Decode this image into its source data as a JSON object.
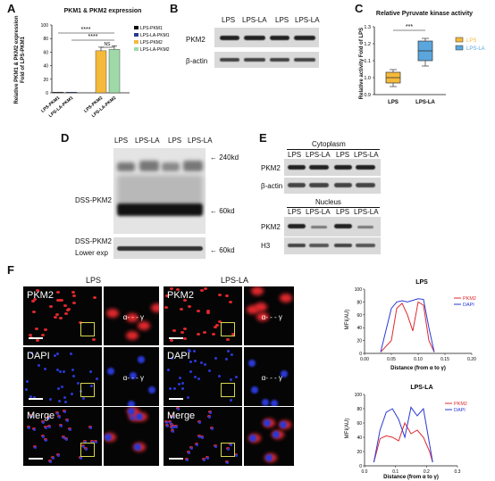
{
  "panels": [
    "A",
    "B",
    "C",
    "D",
    "E",
    "F"
  ],
  "panelA": {
    "title": "PKM1 & PKM2 expression",
    "ylabel": "Relative PKM1 & PKM2 expression\nFold of LPS-PKM1",
    "yticks": [
      "0",
      "20",
      "40",
      "60",
      "80",
      "100"
    ],
    "xcats": [
      "LPS-PKM1",
      "LPS-LA-PKM1",
      "LPS-PKM2",
      "LPS-LA-PKM2"
    ],
    "legend": [
      "LPS-PKM1",
      "LPS-LA-PKM1",
      "LPS-PKM2",
      "LPS-LA-PKM2"
    ],
    "sig1": "****",
    "sig2": "****",
    "sig3": "NS"
  },
  "panelB": {
    "lanes": [
      "LPS",
      "LPS-LA",
      "LPS",
      "LPS-LA"
    ],
    "rows": [
      "PKM2",
      "β-actin"
    ]
  },
  "panelC": {
    "title": "Relative Pyruvate kinase activity",
    "ylabel": "Relative activity Fold of LPS",
    "yticks": [
      "0.9",
      "1.0",
      "1.1",
      "1.2",
      "1.3"
    ],
    "xcats": [
      "LPS",
      "LPS-LA"
    ],
    "legend": [
      "LPS",
      "LPS-LA"
    ],
    "sig": "***"
  },
  "panelD": {
    "lanes": [
      "LPS",
      "LPS-LA",
      "LPS",
      "LPS-LA"
    ],
    "row1": "DSS-PKM2",
    "row2a": "DSS-PKM2",
    "row2b": "Lower exp",
    "mw1": "240kd",
    "mw2": "60kd",
    "mw3": "60kd"
  },
  "panelE": {
    "cyto": "Cytoplasm",
    "nucleus": "Nucleus",
    "lanes": [
      "LPS",
      "LPS-LA",
      "LPS",
      "LPS-LA"
    ],
    "rows_cyto": [
      "PKM2",
      "β-actin"
    ],
    "rows_nuc": [
      "PKM2",
      "H3"
    ]
  },
  "panelF": {
    "col1": "LPS",
    "col2": "LPS-LA",
    "rows": [
      "PKM2",
      "DAPI",
      "Merge"
    ],
    "alpha": "α",
    "gamma": "γ",
    "plot1": {
      "title": "LPS",
      "ylabel": "MFI(AU)",
      "xlabel": "Distance (from α to γ)",
      "yticks": [
        "0",
        "20",
        "40",
        "60",
        "80",
        "100"
      ],
      "xticks": [
        "0.00",
        "0.05",
        "0.10",
        "0.15",
        "0.20"
      ],
      "legend": [
        "PKM2",
        "DAPI"
      ]
    },
    "plot2": {
      "title": "LPS-LA",
      "ylabel": "MFI(AU)",
      "xlabel": "Distance (from α to γ)",
      "yticks": [
        "0",
        "20",
        "40",
        "60",
        "80",
        "100"
      ],
      "xticks": [
        "0.0",
        "0.1",
        "0.2",
        "0.3"
      ],
      "legend": [
        "PKM2",
        "DAPI"
      ]
    }
  },
  "colors": {
    "pkm2": "#e0282d",
    "dapi": "#2a39d6",
    "lps": "#f5b93b",
    "lpsla": "#5aa6dd",
    "green": "#9fd9a8"
  },
  "chart_data": [
    {
      "type": "bar",
      "title": "PKM1 & PKM2 expression",
      "categories": [
        "LPS-PKM1",
        "LPS-LA-PKM1",
        "LPS-PKM2",
        "LPS-LA-PKM2"
      ],
      "values": [
        1,
        1,
        62,
        64
      ],
      "ylim": [
        0,
        100
      ]
    },
    {
      "type": "bar",
      "title": "Relative Pyruvate kinase activity",
      "categories": [
        "LPS",
        "LPS-LA"
      ],
      "values": [
        1.0,
        1.18
      ],
      "ylim": [
        0.9,
        1.3
      ]
    },
    {
      "type": "line",
      "title": "LPS",
      "xlabel": "Distance (from α to γ)",
      "ylabel": "MFI(AU)",
      "xlim": [
        0,
        0.2
      ],
      "ylim": [
        0,
        100
      ],
      "series": [
        {
          "name": "PKM2",
          "x": [
            0.03,
            0.05,
            0.06,
            0.07,
            0.08,
            0.09,
            0.1,
            0.11,
            0.12,
            0.13
          ],
          "y": [
            2,
            20,
            70,
            78,
            60,
            35,
            80,
            75,
            20,
            2
          ]
        },
        {
          "name": "DAPI",
          "x": [
            0.03,
            0.05,
            0.06,
            0.07,
            0.08,
            0.1,
            0.11,
            0.12,
            0.13
          ],
          "y": [
            2,
            70,
            80,
            82,
            80,
            85,
            84,
            40,
            2
          ]
        }
      ]
    },
    {
      "type": "line",
      "title": "LPS-LA",
      "xlabel": "Distance (from α to γ)",
      "ylabel": "MFI(AU)",
      "xlim": [
        0,
        0.3
      ],
      "ylim": [
        0,
        100
      ],
      "series": [
        {
          "name": "PKM2",
          "x": [
            0.03,
            0.05,
            0.07,
            0.09,
            0.11,
            0.13,
            0.15,
            0.17,
            0.19,
            0.21,
            0.22
          ],
          "y": [
            5,
            38,
            42,
            40,
            35,
            60,
            45,
            50,
            40,
            20,
            5
          ]
        },
        {
          "name": "DAPI",
          "x": [
            0.03,
            0.05,
            0.07,
            0.09,
            0.11,
            0.13,
            0.15,
            0.17,
            0.19,
            0.21,
            0.22
          ],
          "y": [
            5,
            50,
            75,
            80,
            65,
            40,
            82,
            70,
            80,
            30,
            5
          ]
        }
      ]
    }
  ]
}
